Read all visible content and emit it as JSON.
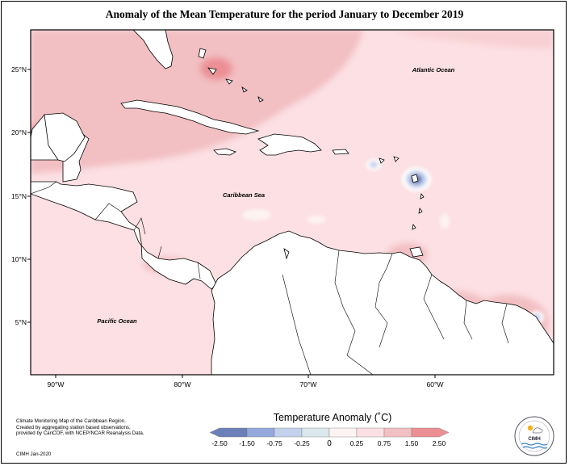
{
  "title": "Anomaly of the Mean Temperature for the period January to December 2019",
  "map": {
    "labels": {
      "atlantic": "Atlantic Ocean",
      "caribbean": "Caribbean Sea",
      "pacific": "Pacific Ocean"
    },
    "lat_ticks": [
      "25°N",
      "20°N",
      "15°N",
      "10°N",
      "5°N"
    ],
    "lon_ticks": [
      "90°W",
      "80°W",
      "70°W",
      "60°W"
    ]
  },
  "colorbar": {
    "title": "Temperature Anomaly (˚C)",
    "ticks": [
      "-2.50",
      "-1.50",
      "-0.75",
      "-0.25",
      "0",
      "0.25",
      "0.75",
      "1.50",
      "2.50"
    ],
    "colors": [
      "#6b7fb8",
      "#94a8dc",
      "#c4d1ec",
      "#dbe7ea",
      "#fdf3f3",
      "#fce0e3",
      "#f2bfc2",
      "#ec8f94"
    ]
  },
  "credits": {
    "lines": [
      "Climate Monitoring Map of the Caribbean Region.",
      "Created by aggregating station based observations,",
      "provided by CariCOF, with NCEP/NCAR Reanalysis Data."
    ],
    "date": "CIMH Jan-2020"
  },
  "logo": {
    "text": "CIMH"
  }
}
